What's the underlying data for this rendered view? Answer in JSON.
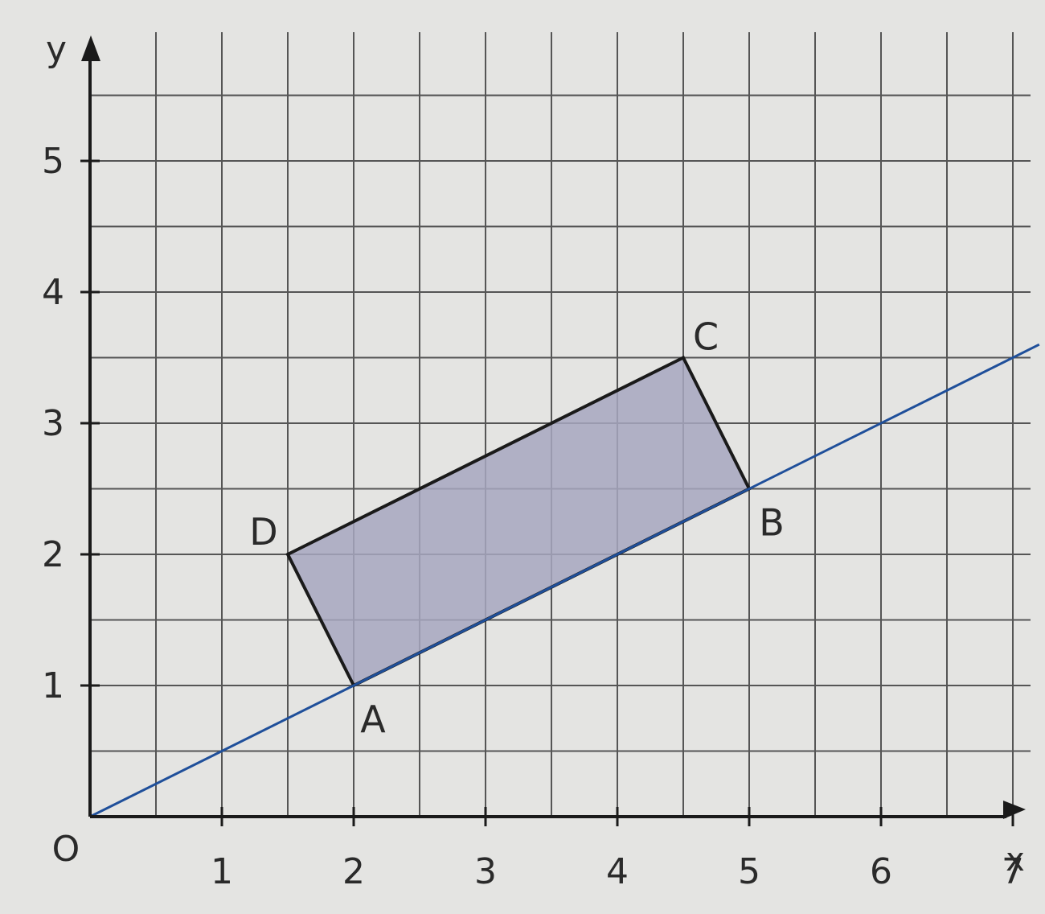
{
  "chart_data": {
    "type": "scatter",
    "title": "",
    "xlabel": "x",
    "ylabel": "y",
    "origin_label": "O",
    "xlim": [
      0,
      7
    ],
    "ylim": [
      0,
      6
    ],
    "grid": true,
    "grid_step": 0.5,
    "x_ticks": [
      1,
      2,
      3,
      4,
      5,
      6,
      7
    ],
    "y_ticks": [
      1,
      2,
      3,
      4,
      5
    ],
    "x_tick_labels": [
      "1",
      "2",
      "3",
      "4",
      "5",
      "6",
      "7"
    ],
    "y_tick_labels": [
      "1",
      "2",
      "3",
      "4",
      "5"
    ],
    "line": {
      "slope": 0.5,
      "intercept": 0,
      "x_range": [
        0,
        7.2
      ],
      "color": "#1f4f9a"
    },
    "shape": {
      "fill": "#a7a7bf",
      "stroke": "#1a1a1a",
      "vertices": [
        {
          "label": "A",
          "x": 2,
          "y": 1
        },
        {
          "label": "B",
          "x": 5,
          "y": 2.5
        },
        {
          "label": "C",
          "x": 4.5,
          "y": 3.5
        },
        {
          "label": "D",
          "x": 1.5,
          "y": 2
        }
      ]
    },
    "colors": {
      "background": "#e4e4e2",
      "grid": "#555555",
      "axis": "#1a1a1a"
    }
  }
}
